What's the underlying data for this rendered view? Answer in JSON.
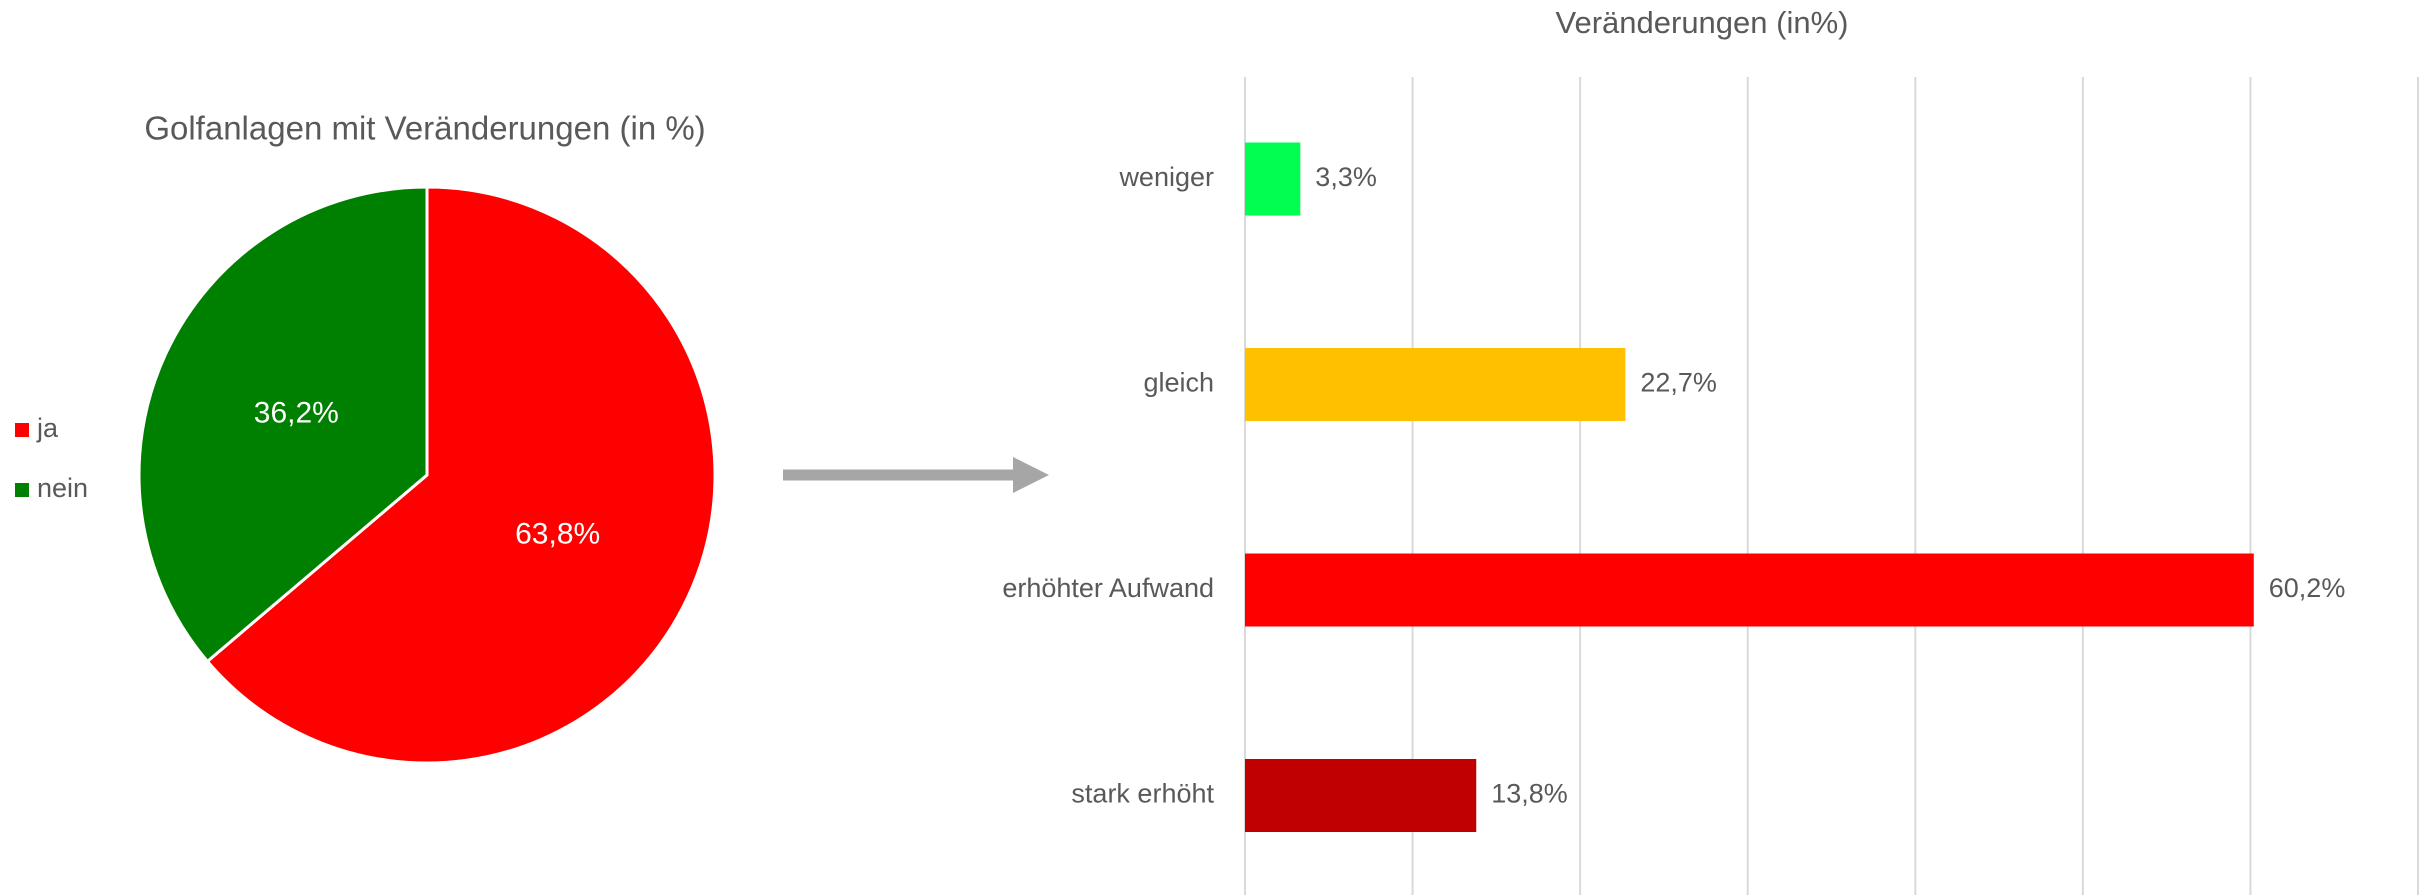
{
  "chart_data": [
    {
      "type": "pie",
      "title": "Golfanlagen mit Veränderungen (in %)",
      "categories": [
        "ja",
        "nein"
      ],
      "values": [
        63.8,
        36.2
      ],
      "value_labels": [
        "63,8%",
        "36,2%"
      ],
      "colors": [
        "#ff0000",
        "#008000"
      ],
      "legend": "left"
    },
    {
      "type": "hbar",
      "title": "Veränderungen (in%)",
      "categories": [
        "weniger",
        "gleich",
        "erhöhter Aufwand",
        "stark erhöht"
      ],
      "values": [
        3.3,
        22.7,
        60.2,
        13.8
      ],
      "value_labels": [
        "3,3%",
        "22,7%",
        "60,2%",
        "13,8%"
      ],
      "colors": [
        "#00ff50",
        "#ffc000",
        "#ff0000",
        "#c00000"
      ],
      "xlim": [
        0,
        70
      ],
      "xticks": [
        0,
        10,
        20,
        30,
        40,
        50,
        60,
        70
      ],
      "grid": true
    }
  ]
}
